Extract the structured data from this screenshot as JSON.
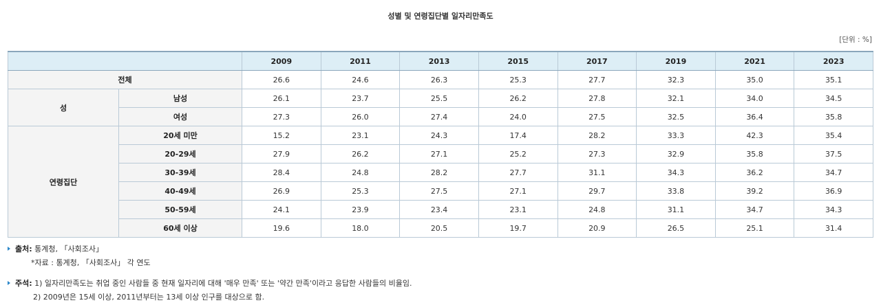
{
  "title": "성별 및 연령집단별 일자리만족도",
  "unit": "[단위 : %]",
  "table": {
    "years": [
      "2009",
      "2011",
      "2013",
      "2015",
      "2017",
      "2019",
      "2021",
      "2023"
    ],
    "total": {
      "label": "전체",
      "values": [
        "26.6",
        "24.6",
        "26.3",
        "25.3",
        "27.7",
        "32.3",
        "35.0",
        "35.1"
      ]
    },
    "sex": {
      "label": "성",
      "rows": [
        {
          "label": "남성",
          "values": [
            "26.1",
            "23.7",
            "25.5",
            "26.2",
            "27.8",
            "32.1",
            "34.0",
            "34.5"
          ]
        },
        {
          "label": "여성",
          "values": [
            "27.3",
            "26.0",
            "27.4",
            "24.0",
            "27.5",
            "32.5",
            "36.4",
            "35.8"
          ]
        }
      ]
    },
    "age": {
      "label": "연령집단",
      "rows": [
        {
          "label": "20세 미만",
          "values": [
            "15.2",
            "23.1",
            "24.3",
            "17.4",
            "28.2",
            "33.3",
            "42.3",
            "35.4"
          ]
        },
        {
          "label": "20-29세",
          "values": [
            "27.9",
            "26.2",
            "27.1",
            "25.2",
            "27.3",
            "32.9",
            "35.8",
            "37.5"
          ]
        },
        {
          "label": "30-39세",
          "values": [
            "28.4",
            "24.8",
            "28.2",
            "27.7",
            "31.1",
            "34.3",
            "36.2",
            "34.7"
          ]
        },
        {
          "label": "40-49세",
          "values": [
            "26.9",
            "25.3",
            "27.5",
            "27.1",
            "29.7",
            "33.8",
            "39.2",
            "36.9"
          ]
        },
        {
          "label": "50-59세",
          "values": [
            "24.1",
            "23.9",
            "23.4",
            "23.1",
            "24.8",
            "31.1",
            "34.7",
            "34.3"
          ]
        },
        {
          "label": "60세 이상",
          "values": [
            "19.6",
            "18.0",
            "20.5",
            "19.7",
            "20.9",
            "26.5",
            "25.1",
            "31.4"
          ]
        }
      ]
    }
  },
  "source": {
    "label": "출처:",
    "text": "통계청, 「사회조사」",
    "sub": "*자료 : 통계청, 「사회조사」 각 연도"
  },
  "notes": {
    "label": "주석:",
    "line1": "1) 일자리만족도는 취업 중인 사람들 중 현재 일자리에 대해 '매우 만족' 또는 '약간 만족'이라고 응답한 사람들의 비율임.",
    "line2": "2) 2009년은 15세 이상, 2011년부터는 13세 이상 인구를 대상으로 함."
  }
}
